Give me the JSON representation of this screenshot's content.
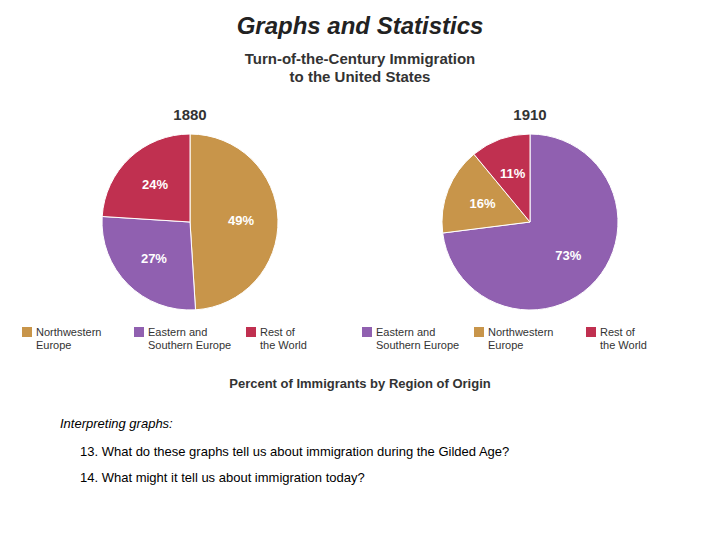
{
  "title": "Graphs and Statistics",
  "subtitle": "Turn-of-the-Century Immigration\nto the United States",
  "annotations": [
    "Percent of Immigrants by Region of Origin",
    "Interpreting graphs:",
    "13. What do these graphs tell us about immigration during the Gilded Age?",
    "14. What might it tell us about immigration today?"
  ],
  "chart_data": [
    {
      "type": "pie",
      "title": "1880",
      "categories": [
        "Northwestern\nEurope",
        "Eastern and\nSouthern Europe",
        "Rest of\nthe World"
      ],
      "values": [
        49,
        27,
        24
      ],
      "value_labels": [
        "49%",
        "27%",
        "24%"
      ],
      "colors": [
        "#c8954a",
        "#9060b0",
        "#c03050"
      ],
      "data_labels": true,
      "legend": "bottom"
    },
    {
      "type": "pie",
      "title": "1910",
      "categories": [
        "Eastern and\nSouthern Europe",
        "Northwestern\nEurope",
        "Rest of\nthe World"
      ],
      "values": [
        73,
        16,
        11
      ],
      "value_labels": [
        "73%",
        "16%",
        "11%"
      ],
      "colors": [
        "#9060b0",
        "#c8954a",
        "#c03050"
      ],
      "data_labels": true,
      "legend": "bottom"
    }
  ]
}
